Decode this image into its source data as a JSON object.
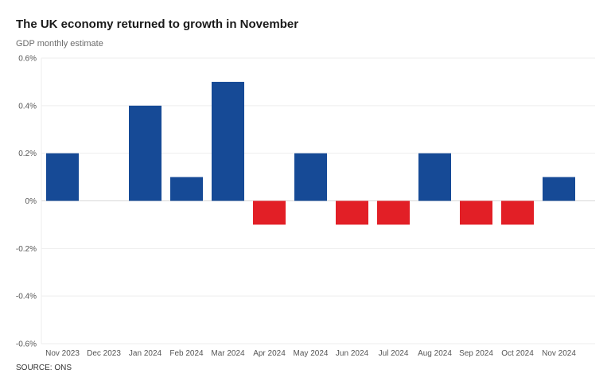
{
  "chart_data": {
    "type": "bar",
    "title": "The UK economy returned to growth in November",
    "subtitle": "GDP monthly estimate",
    "source": "SOURCE: ONS",
    "categories": [
      "Nov 2023",
      "Dec 2023",
      "Jan 2024",
      "Feb 2024",
      "Mar 2024",
      "Apr 2024",
      "May 2024",
      "Jun 2024",
      "Jul 2024",
      "Aug 2024",
      "Sep 2024",
      "Oct 2024",
      "Nov 2024"
    ],
    "values": [
      0.2,
      0.0,
      0.4,
      0.1,
      0.5,
      -0.1,
      0.2,
      -0.1,
      -0.1,
      0.2,
      -0.1,
      -0.1,
      0.1
    ],
    "ylim": [
      -0.6,
      0.6
    ],
    "yticks": [
      0.6,
      0.4,
      0.2,
      0,
      -0.2,
      -0.4,
      -0.6
    ],
    "ytick_labels": [
      "0.6%",
      "0.4%",
      "0.2%",
      "0%",
      "-0.2%",
      "-0.4%",
      "-0.6%"
    ],
    "xlabel": "",
    "ylabel": "",
    "grid": true,
    "colors": {
      "positive": "#164a96",
      "negative": "#e21f26",
      "grid": "#eeeeee",
      "zero_line": "#d8d8d8"
    }
  }
}
